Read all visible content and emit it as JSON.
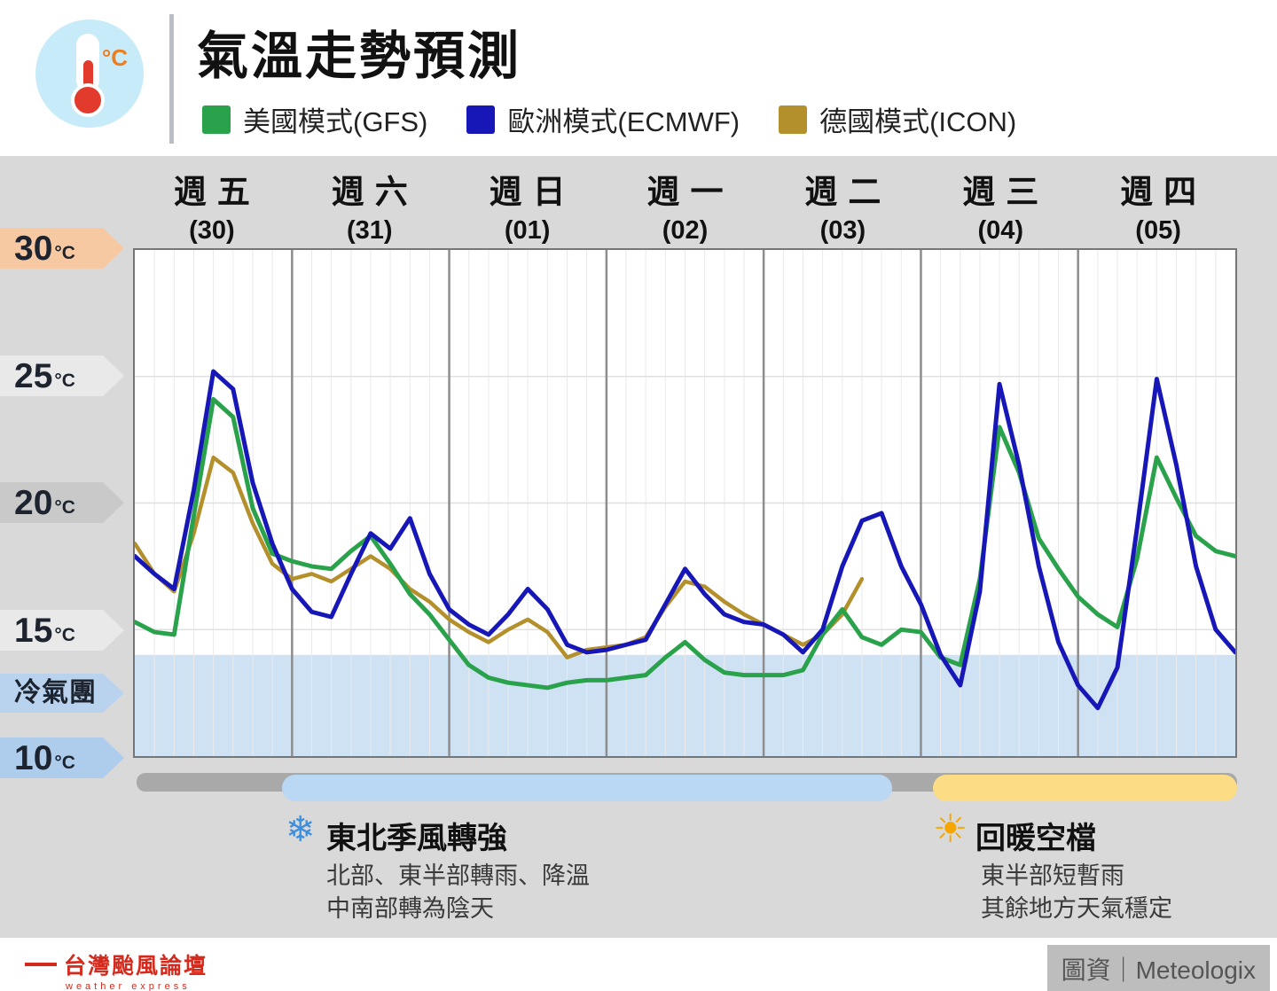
{
  "header": {
    "title": "氣溫走勢預測",
    "icon_unit": "°C",
    "legend": [
      {
        "label": "美國模式(GFS)",
        "color": "#2aa24c"
      },
      {
        "label": "歐洲模式(ECMWF)",
        "color": "#1717b8"
      },
      {
        "label": "德國模式(ICON)",
        "color": "#b3902c"
      }
    ]
  },
  "chart_data": {
    "type": "line",
    "title": "氣溫走勢預測",
    "xlabel": "",
    "ylabel": "°C",
    "ylim": [
      10,
      30
    ],
    "x_range": [
      0,
      168
    ],
    "x_unit": "hours",
    "grid": true,
    "legend_position": "top",
    "h_gridlines": [
      15,
      20,
      25
    ],
    "y_ticks": [
      {
        "label": "30",
        "unit": "°C",
        "value": 30,
        "color": "#f7c9a3"
      },
      {
        "label": "25",
        "unit": "°C",
        "value": 25,
        "color": "#e9e9e9"
      },
      {
        "label": "20",
        "unit": "°C",
        "value": 20,
        "color": "#c9c9c9"
      },
      {
        "label": "15",
        "unit": "°C",
        "value": 15,
        "color": "#e9e9e9"
      },
      {
        "label": "冷氣團",
        "unit": "",
        "value": 12.5,
        "color": "#b9d3ee"
      },
      {
        "label": "10",
        "unit": "°C",
        "value": 10,
        "color": "#aecdec"
      }
    ],
    "cold_band": {
      "label": "冷氣團",
      "from": 10,
      "to": 14,
      "color": "#cfe2f4"
    },
    "days": [
      {
        "name": "週五",
        "date": "(30)"
      },
      {
        "name": "週六",
        "date": "(31)"
      },
      {
        "name": "週日",
        "date": "(01)"
      },
      {
        "name": "週一",
        "date": "(02)"
      },
      {
        "name": "週二",
        "date": "(03)"
      },
      {
        "name": "週三",
        "date": "(04)"
      },
      {
        "name": "週四",
        "date": "(05)"
      }
    ],
    "series": [
      {
        "name": "德國模式(ICON)",
        "color": "#b3902c",
        "width": 4.5,
        "step_hours": 3,
        "values": [
          18.4,
          17.2,
          16.5,
          18.8,
          21.8,
          21.2,
          19.2,
          17.6,
          17.0,
          17.2,
          16.9,
          17.4,
          17.9,
          17.4,
          16.6,
          16.1,
          15.4,
          14.9,
          14.5,
          15.0,
          15.4,
          14.9,
          13.9,
          14.2,
          14.3,
          14.4,
          14.7,
          15.9,
          16.9,
          16.7,
          16.1,
          15.6,
          15.2,
          14.8,
          14.4,
          14.8,
          15.6,
          17.0
        ]
      },
      {
        "name": "美國模式(GFS)",
        "color": "#2aa24c",
        "width": 5,
        "step_hours": 3,
        "values": [
          15.3,
          14.9,
          14.8,
          19.5,
          24.1,
          23.4,
          19.8,
          18.0,
          17.7,
          17.5,
          17.4,
          18.1,
          18.7,
          17.6,
          16.4,
          15.6,
          14.6,
          13.6,
          13.1,
          12.9,
          12.8,
          12.7,
          12.9,
          13.0,
          13.0,
          13.1,
          13.2,
          13.9,
          14.5,
          13.8,
          13.3,
          13.2,
          13.2,
          13.2,
          13.4,
          14.8,
          15.8,
          14.7,
          14.4,
          15.0,
          14.9,
          13.9,
          13.6,
          17.0,
          23.0,
          21.2,
          18.6,
          17.4,
          16.3,
          15.6,
          15.1,
          17.8,
          21.8,
          20.2,
          18.7,
          18.1,
          17.9
        ]
      },
      {
        "name": "歐洲模式(ECMWF)",
        "color": "#1717b8",
        "width": 5,
        "step_hours": 3,
        "values": [
          17.9,
          17.2,
          16.6,
          20.5,
          25.2,
          24.5,
          20.8,
          18.4,
          16.6,
          15.7,
          15.5,
          17.2,
          18.8,
          18.2,
          19.4,
          17.2,
          15.8,
          15.2,
          14.8,
          15.6,
          16.6,
          15.8,
          14.4,
          14.1,
          14.2,
          14.4,
          14.6,
          16.0,
          17.4,
          16.4,
          15.6,
          15.3,
          15.2,
          14.8,
          14.1,
          15.0,
          17.5,
          19.3,
          19.6,
          17.5,
          16.0,
          14.0,
          12.8,
          16.5,
          24.7,
          21.5,
          17.5,
          14.5,
          12.8,
          11.9,
          13.5,
          19.0,
          24.9,
          21.5,
          17.5,
          15.0,
          14.1
        ]
      }
    ]
  },
  "periods": {
    "base_color": "#a9a9a9",
    "monsoon": {
      "icon": "❄",
      "icon_color": "#3e8ede",
      "bar_color": "#bad8f3",
      "title": "東北季風轉強",
      "lines": [
        "北部、東半部轉雨、降溫",
        "中南部轉為陰天"
      ]
    },
    "warming": {
      "icon": "☀",
      "icon_color": "#f7a600",
      "bar_color": "#fcdd85",
      "title": "回暖空檔",
      "lines": [
        "東半部短暫雨",
        "其餘地方天氣穩定"
      ]
    }
  },
  "footer": {
    "logo_main": "台灣颱風論壇",
    "logo_sub": "weather express",
    "credit": "圖資｜Meteologix"
  }
}
